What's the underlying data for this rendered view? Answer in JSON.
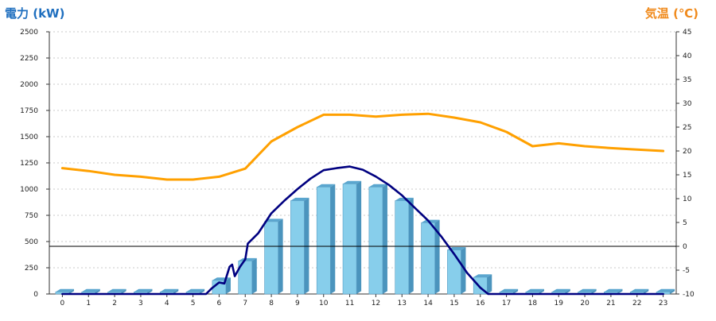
{
  "chart_data": {
    "type": "bar",
    "title": "",
    "xlabel": "",
    "ylabel_left": "電力 (kW)",
    "ylabel_right": "気温 (℃)",
    "ylim_left": [
      0,
      2500
    ],
    "ylim_right": [
      -10,
      45
    ],
    "left_ticks": [
      0,
      250,
      500,
      750,
      1000,
      1250,
      1500,
      1750,
      2000,
      2250,
      2500
    ],
    "right_ticks": [
      -10,
      -5,
      0,
      5,
      10,
      15,
      20,
      25,
      30,
      35,
      40,
      45
    ],
    "grid": true,
    "categories": [
      "0",
      "1",
      "2",
      "3",
      "4",
      "5",
      "6",
      "7",
      "8",
      "9",
      "10",
      "11",
      "12",
      "13",
      "14",
      "15",
      "16",
      "17",
      "18",
      "19",
      "20",
      "21",
      "22",
      "23"
    ],
    "series": [
      {
        "kind": "bar",
        "axis": "left",
        "color": "#87ceeb",
        "values": [
          20,
          20,
          20,
          20,
          20,
          20,
          130,
          315,
          690,
          890,
          1020,
          1050,
          1020,
          890,
          680,
          420,
          160,
          20,
          20,
          20,
          20,
          20,
          20,
          20
        ]
      },
      {
        "kind": "line",
        "axis": "left",
        "color": "#000080",
        "points": [
          [
            0,
            0
          ],
          [
            1,
            0
          ],
          [
            2,
            0
          ],
          [
            3,
            0
          ],
          [
            4,
            0
          ],
          [
            5,
            0
          ],
          [
            5.5,
            0
          ],
          [
            5.7,
            50
          ],
          [
            6.0,
            110
          ],
          [
            6.2,
            100
          ],
          [
            6.4,
            260
          ],
          [
            6.5,
            280
          ],
          [
            6.6,
            170
          ],
          [
            6.8,
            260
          ],
          [
            7.0,
            330
          ],
          [
            7.1,
            480
          ],
          [
            7.5,
            580
          ],
          [
            8,
            770
          ],
          [
            8.5,
            890
          ],
          [
            9,
            1000
          ],
          [
            9.5,
            1100
          ],
          [
            10,
            1180
          ],
          [
            10.5,
            1200
          ],
          [
            11,
            1215
          ],
          [
            11.5,
            1185
          ],
          [
            12,
            1120
          ],
          [
            12.5,
            1040
          ],
          [
            13,
            940
          ],
          [
            13.5,
            820
          ],
          [
            14,
            700
          ],
          [
            14.5,
            550
          ],
          [
            15,
            380
          ],
          [
            15.5,
            200
          ],
          [
            16,
            60
          ],
          [
            16.3,
            0
          ],
          [
            17,
            0
          ],
          [
            18,
            0
          ],
          [
            19,
            0
          ],
          [
            20,
            0
          ],
          [
            21,
            0
          ],
          [
            22,
            0
          ],
          [
            23,
            0
          ]
        ]
      },
      {
        "kind": "line",
        "axis": "right",
        "color": "#ffa000",
        "values": [
          16.4,
          15.8,
          15.0,
          14.6,
          14.0,
          14.0,
          14.6,
          16.3,
          22.0,
          25.0,
          27.6,
          27.6,
          27.2,
          27.6,
          27.8,
          27.0,
          26.0,
          24.0,
          21.0,
          21.6,
          21.0,
          20.6,
          20.3,
          20.0
        ]
      },
      {
        "kind": "hline",
        "axis": "right",
        "color": "#000000",
        "value": 0
      }
    ]
  }
}
